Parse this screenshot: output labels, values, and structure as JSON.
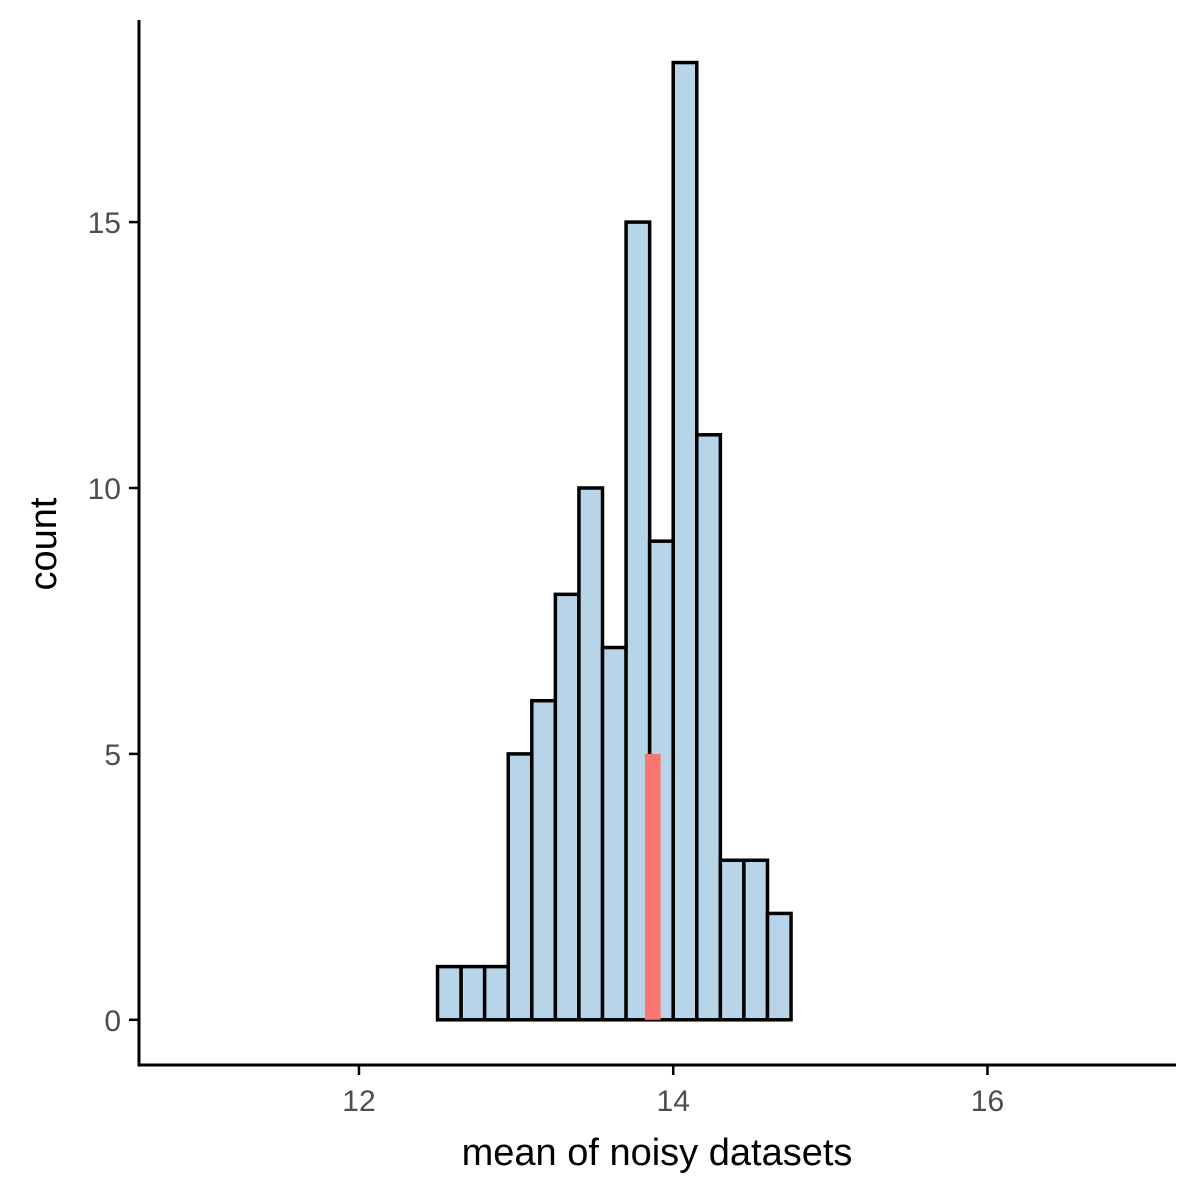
{
  "chart_data": {
    "type": "bar",
    "xlabel": "mean of noisy datasets",
    "ylabel": "count",
    "xlim": [
      10.6,
      17.2
    ],
    "ylim": [
      -0.85,
      18.8
    ],
    "x_ticks": [
      12,
      14,
      16
    ],
    "y_ticks": [
      0,
      5,
      10,
      15
    ],
    "grid": false,
    "bins": [
      {
        "x_start": 12.5,
        "x_end": 12.65,
        "count": 1
      },
      {
        "x_start": 12.65,
        "x_end": 12.8,
        "count": 1
      },
      {
        "x_start": 12.8,
        "x_end": 12.95,
        "count": 1
      },
      {
        "x_start": 12.95,
        "x_end": 13.1,
        "count": 5
      },
      {
        "x_start": 13.1,
        "x_end": 13.25,
        "count": 6
      },
      {
        "x_start": 13.25,
        "x_end": 13.4,
        "count": 8
      },
      {
        "x_start": 13.4,
        "x_end": 13.55,
        "count": 10
      },
      {
        "x_start": 13.55,
        "x_end": 13.7,
        "count": 7
      },
      {
        "x_start": 13.7,
        "x_end": 13.85,
        "count": 15
      },
      {
        "x_start": 13.85,
        "x_end": 14.0,
        "count": 9
      },
      {
        "x_start": 14.0,
        "x_end": 14.15,
        "count": 18
      },
      {
        "x_start": 14.15,
        "x_end": 14.3,
        "count": 11
      },
      {
        "x_start": 14.3,
        "x_end": 14.45,
        "count": 3
      },
      {
        "x_start": 14.45,
        "x_end": 14.6,
        "count": 3
      },
      {
        "x_start": 14.6,
        "x_end": 14.75,
        "count": 2
      }
    ],
    "highlight": {
      "x_start": 13.82,
      "x_end": 13.92,
      "y_start": 0,
      "y_end": 5
    },
    "colors": {
      "bar_fill": "#b8d4e8",
      "bar_stroke": "#000000",
      "highlight": "#f8766d",
      "axis": "#000000",
      "tick_label": "#4d4d4d"
    }
  }
}
